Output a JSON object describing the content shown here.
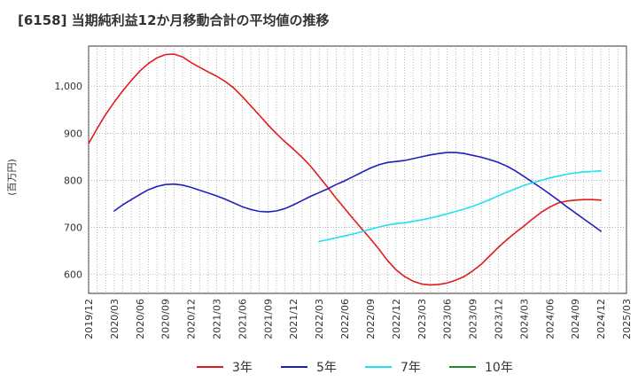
{
  "chart_data": {
    "type": "line",
    "title": "[6158]  当期純利益12か月移動合計の平均値の推移",
    "xlabel": "",
    "ylabel": "(百万円)",
    "ylim": [
      560,
      1085
    ],
    "yticks": [
      600,
      700,
      800,
      900,
      1000
    ],
    "ytick_labels": [
      "600",
      "700",
      "800",
      "900",
      "1,000"
    ],
    "x_ticks": [
      "2019/12",
      "2020/03",
      "2020/06",
      "2020/09",
      "2020/12",
      "2021/03",
      "2021/06",
      "2021/09",
      "2021/12",
      "2022/03",
      "2022/06",
      "2022/09",
      "2022/12",
      "2023/03",
      "2023/06",
      "2023/09",
      "2023/12",
      "2024/03",
      "2024/06",
      "2024/09",
      "2024/12",
      "2025/03"
    ],
    "grid": true,
    "legend_position": "bottom",
    "series": [
      {
        "name": "3年",
        "color": "#e31a1c",
        "x": [
          "2019/12",
          "2020/01",
          "2020/02",
          "2020/03",
          "2020/04",
          "2020/05",
          "2020/06",
          "2020/07",
          "2020/08",
          "2020/09",
          "2020/10",
          "2020/11",
          "2020/12",
          "2021/01",
          "2021/02",
          "2021/03",
          "2021/04",
          "2021/05",
          "2021/06",
          "2021/07",
          "2021/08",
          "2021/09",
          "2021/10",
          "2021/11",
          "2021/12",
          "2022/01",
          "2022/02",
          "2022/03",
          "2022/04",
          "2022/05",
          "2022/06",
          "2022/07",
          "2022/08",
          "2022/09",
          "2022/10",
          "2022/11",
          "2022/12",
          "2023/01",
          "2023/02",
          "2023/03",
          "2023/04",
          "2023/05",
          "2023/06",
          "2023/07",
          "2023/08",
          "2023/09",
          "2023/10",
          "2023/11",
          "2023/12",
          "2024/01",
          "2024/02",
          "2024/03",
          "2024/04",
          "2024/05",
          "2024/06",
          "2024/07",
          "2024/08",
          "2024/09",
          "2024/10",
          "2024/11",
          "2024/12"
        ],
        "values": [
          878,
          910,
          940,
          966,
          990,
          1012,
          1032,
          1048,
          1060,
          1067,
          1068,
          1062,
          1050,
          1040,
          1030,
          1021,
          1010,
          996,
          978,
          958,
          938,
          918,
          899,
          882,
          866,
          849,
          830,
          808,
          785,
          762,
          740,
          718,
          697,
          676,
          654,
          630,
          610,
          596,
          586,
          580,
          578,
          579,
          582,
          588,
          596,
          608,
          622,
          640,
          658,
          674,
          689,
          703,
          718,
          732,
          743,
          752,
          756,
          758,
          759,
          759,
          758
        ],
        "line_width": 1.6
      },
      {
        "name": "5年",
        "color": "#1f1fbf",
        "x": [
          "2020/03",
          "2020/04",
          "2020/05",
          "2020/06",
          "2020/07",
          "2020/08",
          "2020/09",
          "2020/10",
          "2020/11",
          "2020/12",
          "2021/01",
          "2021/02",
          "2021/03",
          "2021/04",
          "2021/05",
          "2021/06",
          "2021/07",
          "2021/08",
          "2021/09",
          "2021/10",
          "2021/11",
          "2021/12",
          "2022/01",
          "2022/02",
          "2022/03",
          "2022/04",
          "2022/05",
          "2022/06",
          "2022/07",
          "2022/08",
          "2022/09",
          "2022/10",
          "2022/11",
          "2022/12",
          "2023/01",
          "2023/02",
          "2023/03",
          "2023/04",
          "2023/05",
          "2023/06",
          "2023/07",
          "2023/08",
          "2023/09",
          "2023/10",
          "2023/11",
          "2023/12",
          "2024/01",
          "2024/02",
          "2024/03",
          "2024/04",
          "2024/05",
          "2024/06",
          "2024/07",
          "2024/08",
          "2024/09",
          "2024/10",
          "2024/11",
          "2024/12"
        ],
        "values": [
          735,
          748,
          759,
          770,
          780,
          787,
          791,
          792,
          790,
          785,
          779,
          773,
          767,
          760,
          752,
          744,
          738,
          734,
          733,
          735,
          740,
          748,
          757,
          766,
          774,
          782,
          791,
          799,
          808,
          817,
          826,
          833,
          838,
          840,
          842,
          846,
          850,
          854,
          857,
          859,
          859,
          857,
          853,
          849,
          844,
          838,
          830,
          820,
          808,
          796,
          784,
          771,
          758,
          744,
          731,
          718,
          705,
          692
        ],
        "line_width": 1.6
      },
      {
        "name": "7年",
        "color": "#20e0f0",
        "x": [
          "2022/03",
          "2022/04",
          "2022/05",
          "2022/06",
          "2022/07",
          "2022/08",
          "2022/09",
          "2022/10",
          "2022/11",
          "2022/12",
          "2023/01",
          "2023/02",
          "2023/03",
          "2023/04",
          "2023/05",
          "2023/06",
          "2023/07",
          "2023/08",
          "2023/09",
          "2023/10",
          "2023/11",
          "2023/12",
          "2024/01",
          "2024/02",
          "2024/03",
          "2024/04",
          "2024/05",
          "2024/06",
          "2024/07",
          "2024/08",
          "2024/09",
          "2024/10",
          "2024/11",
          "2024/12"
        ],
        "values": [
          670,
          674,
          678,
          682,
          686,
          691,
          696,
          701,
          705,
          708,
          710,
          713,
          716,
          720,
          724,
          729,
          734,
          739,
          745,
          752,
          759,
          767,
          775,
          782,
          789,
          795,
          800,
          805,
          809,
          813,
          816,
          818,
          819,
          820
        ],
        "line_width": 1.6
      },
      {
        "name": "10年",
        "color": "#228b22",
        "x": [],
        "values": [],
        "line_width": 1.6
      }
    ]
  }
}
